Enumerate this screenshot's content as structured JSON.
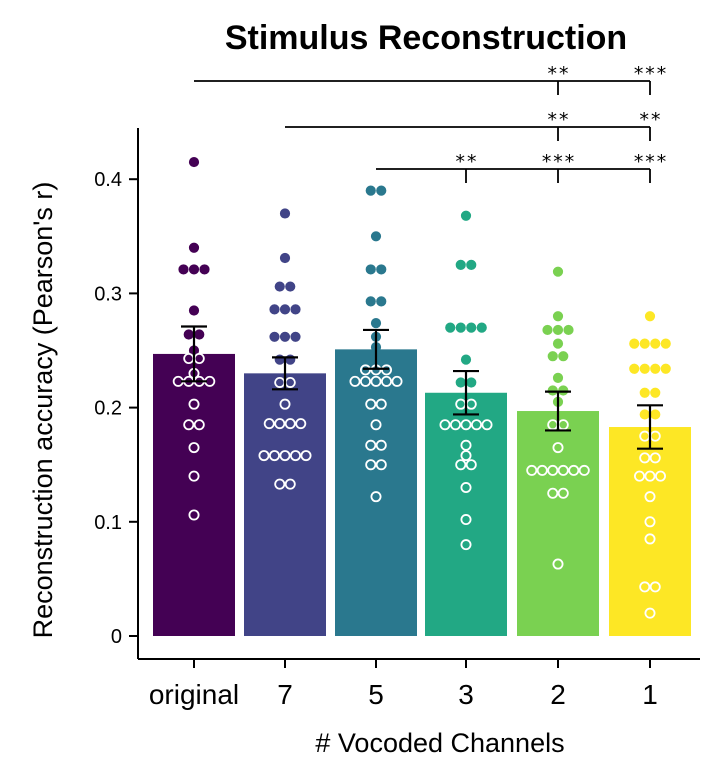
{
  "chart_data": {
    "type": "bar",
    "title": "Stimulus Reconstruction",
    "xlabel": "# Vocoded Channels",
    "ylabel": "Reconstruction accuracy (Pearson's r)",
    "ylim": [
      0,
      0.45
    ],
    "yticks": [
      0,
      0.1,
      0.2,
      0.3,
      0.4
    ],
    "ytick_labels": [
      "0",
      "0.1",
      "0.2",
      "0.3",
      "0.4"
    ],
    "grid": false,
    "legend": "none",
    "categories": [
      "original",
      "7",
      "5",
      "3",
      "2",
      "1"
    ],
    "values": [
      0.247,
      0.23,
      0.251,
      0.213,
      0.197,
      0.183
    ],
    "error": [
      0.024,
      0.014,
      0.017,
      0.019,
      0.017,
      0.019
    ],
    "colors": [
      "#440154",
      "#414487",
      "#2a788e",
      "#22a884",
      "#7ad151",
      "#fde725"
    ],
    "points": [
      [
        0.415,
        0.34,
        0.321,
        0.321,
        0.321,
        0.285,
        0.264,
        0.264,
        0.25,
        0.243,
        0.243,
        0.23,
        0.223,
        0.223,
        0.223,
        0.223,
        0.203,
        0.185,
        0.185,
        0.165,
        0.14,
        0.106
      ],
      [
        0.37,
        0.331,
        0.306,
        0.306,
        0.286,
        0.286,
        0.286,
        0.262,
        0.262,
        0.262,
        0.242,
        0.242,
        0.222,
        0.222,
        0.203,
        0.186,
        0.186,
        0.186,
        0.186,
        0.158,
        0.158,
        0.158,
        0.158,
        0.158,
        0.133,
        0.133
      ],
      [
        0.39,
        0.39,
        0.35,
        0.321,
        0.321,
        0.293,
        0.293,
        0.274,
        0.262,
        0.253,
        0.233,
        0.233,
        0.233,
        0.223,
        0.223,
        0.223,
        0.223,
        0.223,
        0.203,
        0.203,
        0.185,
        0.167,
        0.167,
        0.15,
        0.15,
        0.122
      ],
      [
        0.368,
        0.325,
        0.325,
        0.27,
        0.27,
        0.27,
        0.27,
        0.242,
        0.222,
        0.222,
        0.203,
        0.203,
        0.185,
        0.185,
        0.185,
        0.185,
        0.185,
        0.167,
        0.158,
        0.15,
        0.15,
        0.13,
        0.102,
        0.08
      ],
      [
        0.319,
        0.28,
        0.268,
        0.268,
        0.268,
        0.256,
        0.245,
        0.245,
        0.226,
        0.215,
        0.215,
        0.205,
        0.185,
        0.185,
        0.165,
        0.145,
        0.145,
        0.145,
        0.145,
        0.145,
        0.145,
        0.125,
        0.125,
        0.063
      ],
      [
        0.28,
        0.256,
        0.256,
        0.256,
        0.256,
        0.234,
        0.234,
        0.234,
        0.234,
        0.213,
        0.213,
        0.194,
        0.194,
        0.175,
        0.175,
        0.156,
        0.156,
        0.14,
        0.14,
        0.14,
        0.122,
        0.1,
        0.085,
        0.043,
        0.043,
        0.02
      ]
    ],
    "significance": [
      {
        "from": 0,
        "to": 5,
        "marks": [
          {
            "at": 4,
            "label": "**"
          },
          {
            "at": 5,
            "label": "***"
          }
        ]
      },
      {
        "from": 1,
        "to": 5,
        "marks": [
          {
            "at": 4,
            "label": "**"
          },
          {
            "at": 5,
            "label": "**"
          }
        ]
      },
      {
        "from": 2,
        "to": 5,
        "marks": [
          {
            "at": 3,
            "label": "**"
          },
          {
            "at": 4,
            "label": "***"
          },
          {
            "at": 5,
            "label": "***"
          }
        ]
      }
    ]
  }
}
